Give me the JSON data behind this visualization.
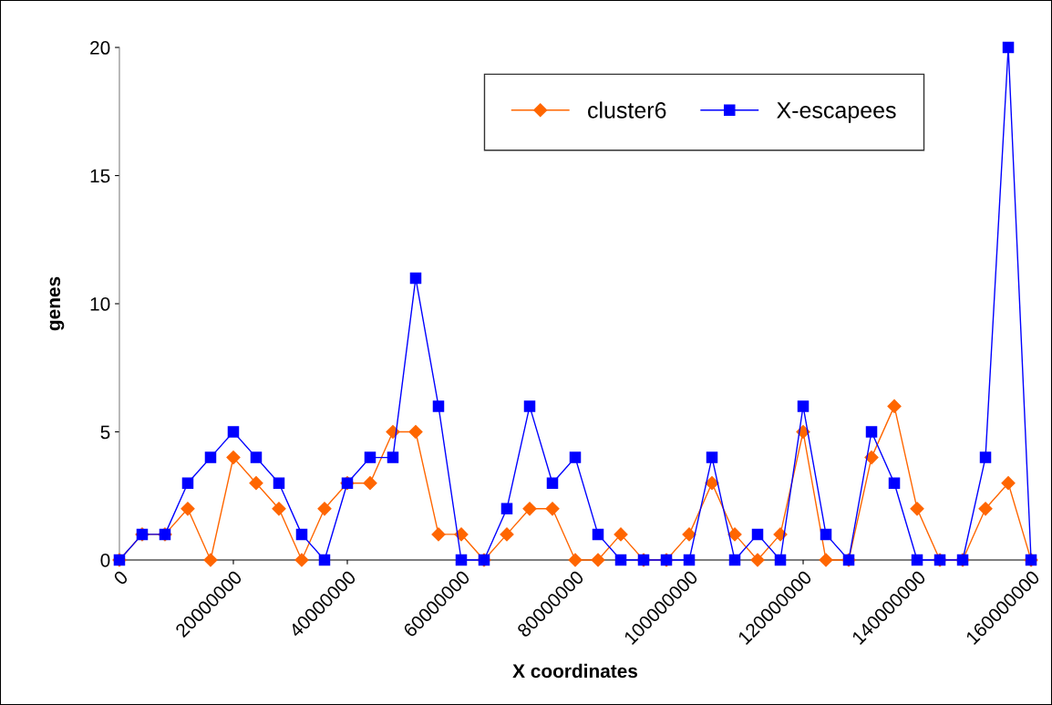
{
  "chart_data": {
    "type": "line",
    "xlabel": "X coordinates",
    "ylabel": "genes",
    "x": [
      0,
      4000000,
      8000000,
      12000000,
      16000000,
      20000000,
      24000000,
      28000000,
      32000000,
      36000000,
      40000000,
      44000000,
      48000000,
      52000000,
      56000000,
      60000000,
      64000000,
      68000000,
      72000000,
      76000000,
      80000000,
      84000000,
      88000000,
      92000000,
      96000000,
      100000000,
      104000000,
      108000000,
      112000000,
      116000000,
      120000000,
      124000000,
      128000000,
      132000000,
      136000000,
      140000000,
      144000000,
      148000000,
      152000000,
      156000000,
      160000000
    ],
    "series": [
      {
        "name": "cluster6",
        "color": "#ff6600",
        "marker": "diamond",
        "values": [
          0,
          1,
          1,
          2,
          0,
          4,
          3,
          2,
          0,
          2,
          3,
          3,
          5,
          5,
          1,
          1,
          0,
          1,
          2,
          2,
          0,
          0,
          1,
          0,
          0,
          1,
          3,
          1,
          0,
          1,
          5,
          0,
          0,
          4,
          6,
          2,
          0,
          0,
          2,
          3,
          0
        ]
      },
      {
        "name": "X-escapees",
        "color": "#0000ff",
        "marker": "square",
        "values": [
          0,
          1,
          1,
          3,
          4,
          5,
          4,
          3,
          1,
          0,
          3,
          4,
          4,
          11,
          6,
          0,
          0,
          2,
          6,
          3,
          4,
          1,
          0,
          0,
          0,
          0,
          4,
          0,
          1,
          0,
          6,
          1,
          0,
          5,
          3,
          0,
          0,
          0,
          4,
          20,
          0
        ]
      }
    ],
    "xlim": [
      0,
      160000000
    ],
    "xticks": [
      0,
      20000000,
      40000000,
      60000000,
      80000000,
      100000000,
      120000000,
      140000000,
      160000000
    ],
    "ylim": [
      0,
      20
    ],
    "yticks": [
      0,
      5,
      10,
      15,
      20
    ],
    "grid": false,
    "legend": "top right",
    "line_style": "solid"
  }
}
